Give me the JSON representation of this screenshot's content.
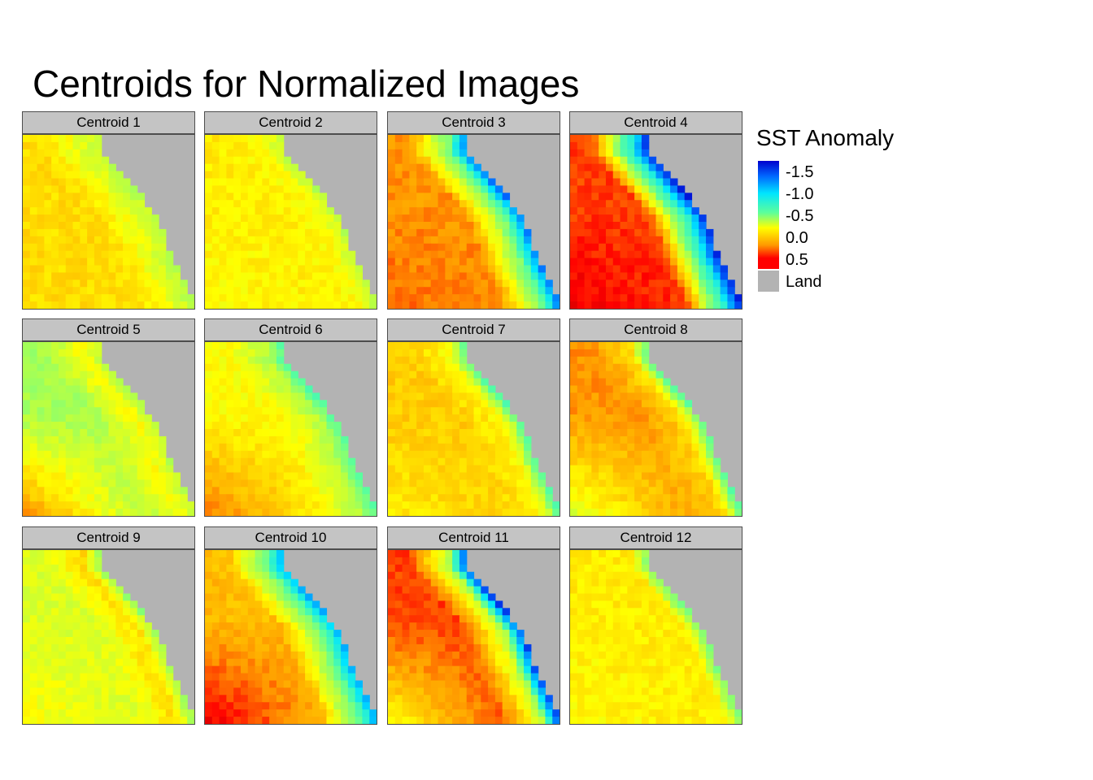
{
  "title": "Centroids for Normalized Images",
  "legend": {
    "title": "SST Anomaly",
    "ticks": [
      "-1.5",
      "-1.0",
      "-0.5",
      "0.0",
      "0.5"
    ],
    "land_label": "Land",
    "land_color": "#b3b3b3",
    "colors": [
      "#0000cd",
      "#00e5ff",
      "#ffff00",
      "#ff0000"
    ]
  },
  "chart_data": {
    "type": "heatmap",
    "title": "Centroids for Normalized Images",
    "legend_title": "SST Anomaly",
    "color_scale": {
      "ticks": [
        -1.5,
        -1.0,
        -0.5,
        0.0,
        0.5
      ],
      "range": [
        -1.7,
        0.7
      ],
      "colors": [
        "#0000cd",
        "#00e5ff",
        "#ffff00",
        "#ff0000"
      ],
      "land_category": "Land",
      "land_color": "#b3b3b3"
    },
    "layout": "3 rows x 4 columns of facets",
    "facets": [
      {
        "label": "Centroid 1",
        "values": {
          "offshore": 0.1,
          "nearshore": -0.1,
          "coastal": -0.2,
          "south": 0.1
        }
      },
      {
        "label": "Centroid 2",
        "values": {
          "offshore": 0.05,
          "nearshore": 0.0,
          "coastal": -0.2,
          "south": 0.0
        }
      },
      {
        "label": "Centroid 3",
        "values": {
          "offshore": 0.3,
          "nearshore": -0.4,
          "coastal": -1.3,
          "south": 0.4
        }
      },
      {
        "label": "Centroid 4",
        "values": {
          "offshore": 0.45,
          "nearshore": -0.7,
          "coastal": -1.6,
          "south": 0.6
        }
      },
      {
        "label": "Centroid 5",
        "values": {
          "offshore": -0.25,
          "nearshore": 0.0,
          "coastal": -0.2,
          "south": 0.3
        }
      },
      {
        "label": "Centroid 6",
        "values": {
          "offshore": 0.0,
          "nearshore": -0.2,
          "coastal": -0.5,
          "south": 0.35
        }
      },
      {
        "label": "Centroid 7",
        "values": {
          "offshore": 0.15,
          "nearshore": 0.0,
          "coastal": -0.5,
          "south": 0.05
        }
      },
      {
        "label": "Centroid 8",
        "values": {
          "offshore": 0.3,
          "nearshore": 0.1,
          "coastal": -0.5,
          "south": -0.1
        }
      },
      {
        "label": "Centroid 9",
        "values": {
          "offshore": -0.1,
          "nearshore": 0.1,
          "coastal": -0.3,
          "south": 0.0
        }
      },
      {
        "label": "Centroid 10",
        "values": {
          "offshore": 0.2,
          "nearshore": -0.4,
          "coastal": -1.1,
          "south": 0.6
        }
      },
      {
        "label": "Centroid 11",
        "values": {
          "offshore": 0.45,
          "nearshore": -0.2,
          "coastal": -1.5,
          "south": 0.0
        }
      },
      {
        "label": "Centroid 12",
        "values": {
          "offshore": 0.05,
          "nearshore": 0.05,
          "coastal": -0.4,
          "south": 0.0
        }
      }
    ]
  }
}
